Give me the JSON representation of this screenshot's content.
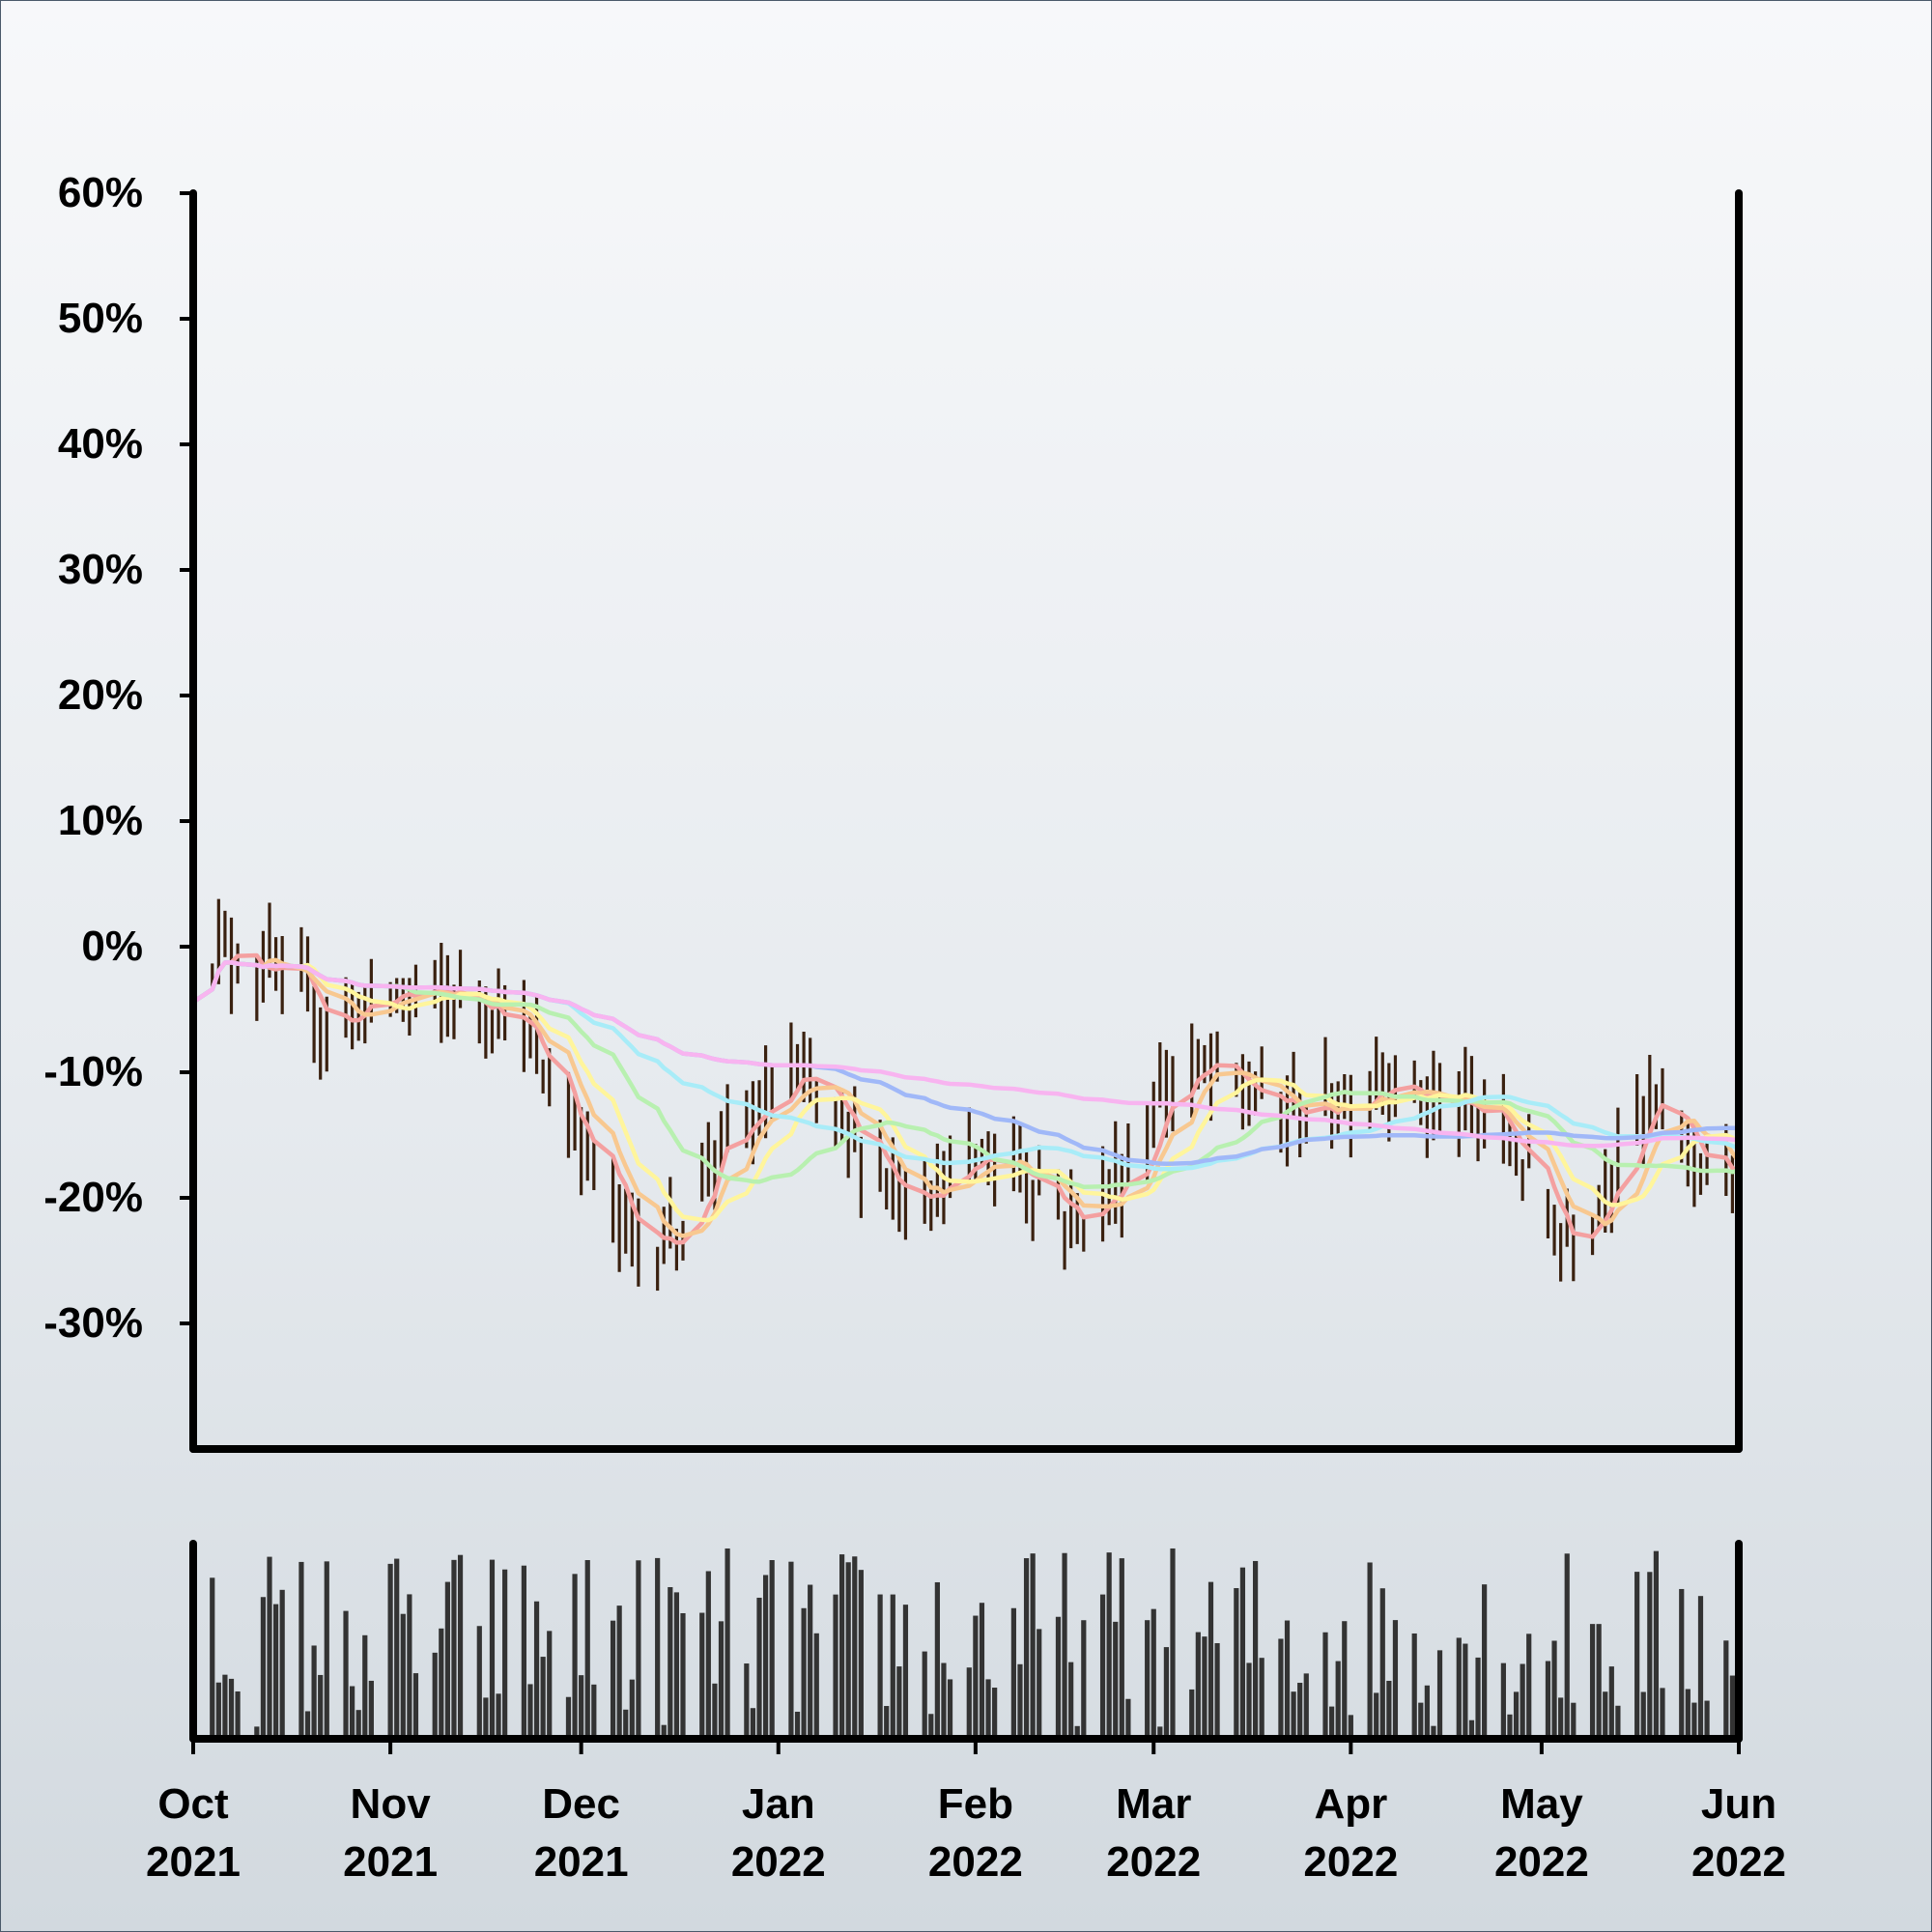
{
  "chart_data": {
    "type": "ohlc",
    "title": "",
    "xlabel": "",
    "ylabel": "",
    "y_tick_labels": [
      "60%",
      "50%",
      "40%",
      "30%",
      "20%",
      "10%",
      "0%",
      "-10%",
      "-20%",
      "-30%"
    ],
    "y_ticks": [
      60,
      50,
      40,
      30,
      20,
      10,
      0,
      -10,
      -20,
      -30
    ],
    "ylim": [
      -40,
      60
    ],
    "x_ticks": [
      {
        "date": "2021-10-01",
        "label_month": "Oct",
        "label_year": "2021"
      },
      {
        "date": "2021-11-01",
        "label_month": "Nov",
        "label_year": "2021"
      },
      {
        "date": "2021-12-01",
        "label_month": "Dec",
        "label_year": "2021"
      },
      {
        "date": "2022-01-01",
        "label_month": "Jan",
        "label_year": "2022"
      },
      {
        "date": "2022-02-01",
        "label_month": "Feb",
        "label_year": "2022"
      },
      {
        "date": "2022-03-01",
        "label_month": "Mar",
        "label_year": "2022"
      },
      {
        "date": "2022-04-01",
        "label_month": "Apr",
        "label_year": "2022"
      },
      {
        "date": "2022-05-01",
        "label_month": "May",
        "label_year": "2022"
      },
      {
        "date": "2022-06-01",
        "label_month": "Jun",
        "label_year": "2022"
      }
    ],
    "xlim": [
      "2021-10-01",
      "2022-06-01"
    ],
    "price_path": [
      [
        "2021-10-01",
        -3
      ],
      [
        "2021-10-05",
        0
      ],
      [
        "2021-10-10",
        -1
      ],
      [
        "2021-10-16",
        -3
      ],
      [
        "2021-10-22",
        -6
      ],
      [
        "2021-10-27",
        -5
      ],
      [
        "2021-11-01",
        -4
      ],
      [
        "2021-11-08",
        -4
      ],
      [
        "2021-11-14",
        -4
      ],
      [
        "2021-11-20",
        -5
      ],
      [
        "2021-11-25",
        -10
      ],
      [
        "2021-12-01",
        -15
      ],
      [
        "2021-12-07",
        -22
      ],
      [
        "2021-12-12",
        -24
      ],
      [
        "2021-12-17",
        -22
      ],
      [
        "2021-12-22",
        -16
      ],
      [
        "2021-12-28",
        -14
      ],
      [
        "2022-01-03",
        -10
      ],
      [
        "2022-01-08",
        -13
      ],
      [
        "2022-01-14",
        -16
      ],
      [
        "2022-01-20",
        -19
      ],
      [
        "2022-01-26",
        -19
      ],
      [
        "2022-02-01",
        -17
      ],
      [
        "2022-02-07",
        -17
      ],
      [
        "2022-02-12",
        -19
      ],
      [
        "2022-02-16",
        -22
      ],
      [
        "2022-02-21",
        -20
      ],
      [
        "2022-02-26",
        -17
      ],
      [
        "2022-03-03",
        -11
      ],
      [
        "2022-03-09",
        -10
      ],
      [
        "2022-03-14",
        -11
      ],
      [
        "2022-03-20",
        -13
      ],
      [
        "2022-03-26",
        -13
      ],
      [
        "2022-04-01",
        -12
      ],
      [
        "2022-04-06",
        -10
      ],
      [
        "2022-04-12",
        -12
      ],
      [
        "2022-04-18",
        -13
      ],
      [
        "2022-04-24",
        -14
      ],
      [
        "2022-04-29",
        -18
      ],
      [
        "2022-05-04",
        -23
      ],
      [
        "2022-05-09",
        -21
      ],
      [
        "2022-05-14",
        -15
      ],
      [
        "2022-05-19",
        -13
      ],
      [
        "2022-05-24",
        -16
      ],
      [
        "2022-06-01",
        -19
      ]
    ],
    "moving_averages": [
      {
        "color": "#f4a0a0",
        "window": 5
      },
      {
        "color": "#f8c890",
        "window": 8
      },
      {
        "color": "#fff59c",
        "window": 12
      },
      {
        "color": "#b8f0b0",
        "window": 22
      },
      {
        "color": "#a8ecf8",
        "window": 40
      },
      {
        "color": "#a0b8f8",
        "window": 70
      },
      {
        "color": "#f8b4f0",
        "window": 110
      }
    ],
    "bar_color": "#3a2110",
    "volume_color": "#333333",
    "volume_panel": true,
    "grid": false
  }
}
